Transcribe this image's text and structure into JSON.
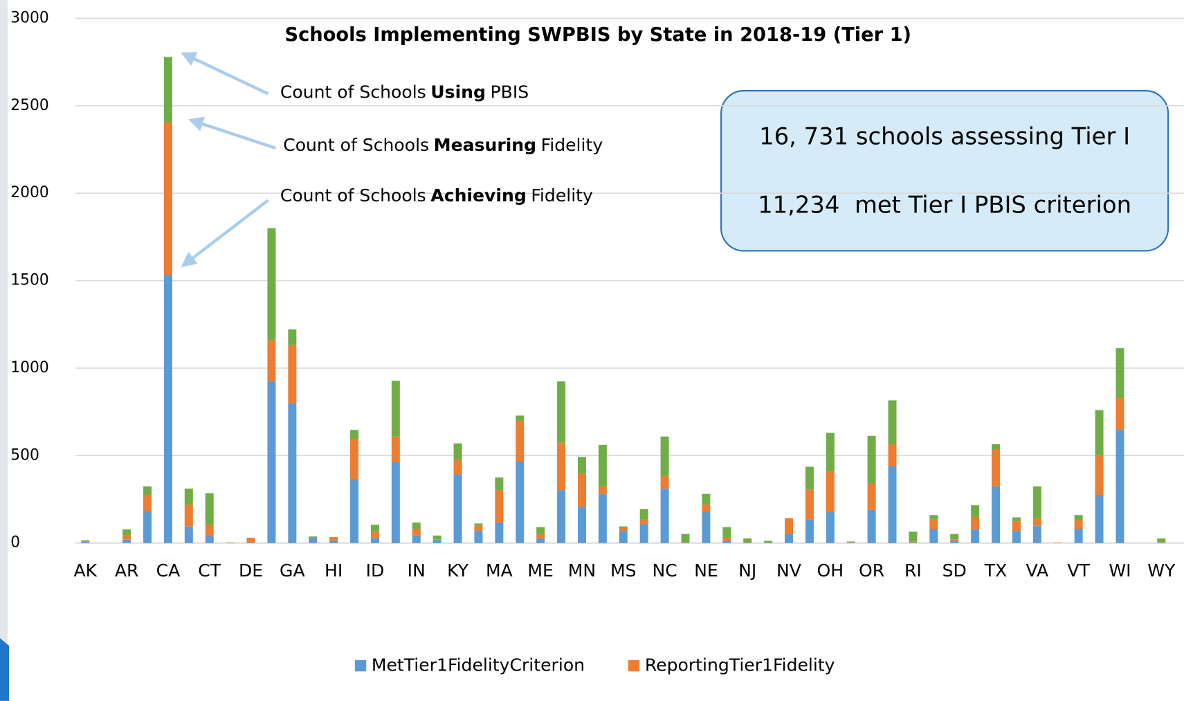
{
  "chart_data": {
    "type": "stacked_bar",
    "title": "Schools Implementing SWPBIS by State in 2018-19 (Tier 1)",
    "categories": [
      "AK",
      null,
      "AR",
      null,
      "CA",
      null,
      "CT",
      null,
      "DE",
      null,
      "GA",
      null,
      "HI",
      null,
      "ID",
      null,
      "IN",
      null,
      "KY",
      null,
      "MA",
      null,
      "ME",
      null,
      "MN",
      null,
      "MS",
      null,
      "NC",
      null,
      "NE",
      null,
      "NJ",
      null,
      "NV",
      null,
      "OH",
      null,
      "OR",
      null,
      "RI",
      null,
      "SD",
      null,
      "TX",
      null,
      "VA",
      null,
      "VT",
      null,
      "WI",
      null,
      "WY"
    ],
    "series": [
      {
        "name": "MetTier1FidelityCriterion",
        "color": "#5b9bd5",
        "values": [
          10,
          0,
          20,
          181,
          1532,
          95,
          43,
          0,
          3,
          924,
          798,
          30,
          13,
          367,
          30,
          462,
          43,
          17,
          393,
          69,
          117,
          466,
          26,
          302,
          207,
          281,
          69,
          108,
          311,
          3,
          177,
          13,
          3,
          2,
          52,
          134,
          177,
          3,
          190,
          440,
          3,
          78,
          13,
          78,
          324,
          69,
          99,
          0,
          82,
          276,
          647,
          0,
          3
        ]
      },
      {
        "name": "ReportingTier1Fidelity",
        "color": "#ed7d31",
        "values": [
          3,
          0,
          25,
          95,
          872,
          125,
          61,
          0,
          27,
          237,
          333,
          5,
          22,
          229,
          35,
          147,
          39,
          5,
          82,
          30,
          185,
          233,
          26,
          272,
          190,
          43,
          17,
          26,
          73,
          2,
          43,
          22,
          2,
          1,
          90,
          172,
          233,
          3,
          151,
          125,
          5,
          56,
          9,
          69,
          211,
          56,
          43,
          3,
          48,
          225,
          182,
          0,
          3
        ]
      },
      {
        "color": "#70ad47",
        "values": [
          3,
          0,
          33,
          48,
          375,
          91,
          181,
          3,
          0,
          639,
          90,
          3,
          0,
          51,
          39,
          319,
          35,
          21,
          95,
          13,
          73,
          30,
          39,
          350,
          95,
          237,
          9,
          60,
          225,
          47,
          61,
          56,
          21,
          10,
          0,
          130,
          220,
          3,
          272,
          251,
          57,
          26,
          30,
          69,
          30,
          22,
          182,
          0,
          30,
          259,
          285,
          0,
          20
        ]
      }
    ],
    "ylim": [
      0,
      3000
    ],
    "yticks": [
      0,
      500,
      1000,
      1500,
      2000,
      2500,
      3000
    ],
    "grid": true,
    "annotations": [
      {
        "prefix": "Count of Schools",
        "bold": "Using",
        "suffix": "PBIS"
      },
      {
        "prefix": "Count of Schools",
        "bold": "Measuring",
        "suffix": "Fidelity"
      },
      {
        "prefix": "Count of Schools",
        "bold": "Achieving",
        "suffix": "Fidelity"
      }
    ],
    "textbox": [
      "16, 731 schools assessing Tier I",
      "11,234  met Tier I PBIS criterion"
    ]
  }
}
